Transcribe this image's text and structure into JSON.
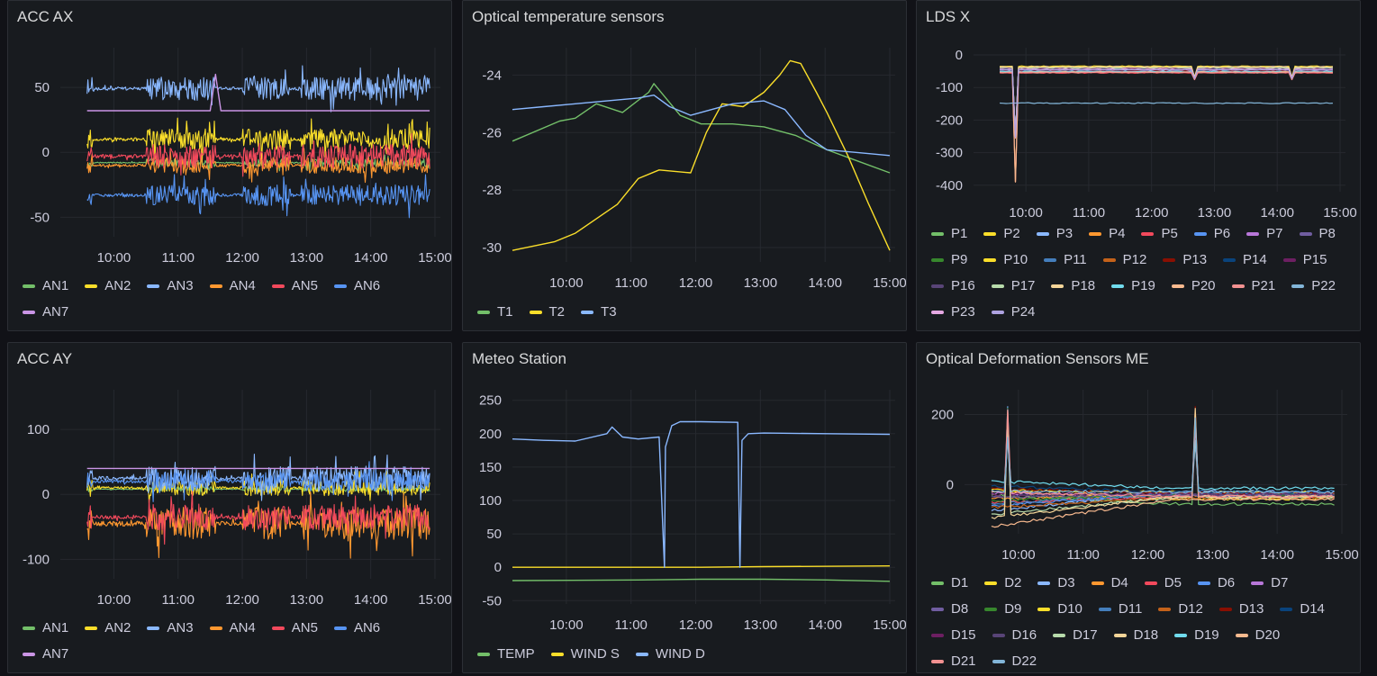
{
  "x_ticks": [
    "10:00",
    "11:00",
    "12:00",
    "13:00",
    "14:00",
    "15:00"
  ],
  "panels": [
    {
      "id": "acc-ax",
      "title": "ACC AX",
      "chart_data": {
        "type": "line",
        "title": "ACC AX",
        "x_range": [
          "09:10",
          "15:00"
        ],
        "ylim": [
          -65,
          75
        ],
        "y_ticks": [
          50,
          0,
          -50
        ],
        "grid": true,
        "legend_position": "bottom",
        "series": [
          {
            "name": "AN1",
            "color": "#73bf69",
            "baseline": -8,
            "amplitude": 3
          },
          {
            "name": "AN2",
            "color": "#fade2a",
            "baseline": 10,
            "amplitude": 8
          },
          {
            "name": "AN3",
            "color": "#8ab8ff",
            "baseline": 49,
            "amplitude": 9
          },
          {
            "name": "AN4",
            "color": "#ff9830",
            "baseline": -10,
            "amplitude": 6
          },
          {
            "name": "AN5",
            "color": "#f2495c",
            "baseline": -3,
            "amplitude": 9
          },
          {
            "name": "AN6",
            "color": "#5794f2",
            "baseline": -33,
            "amplitude": 8
          },
          {
            "name": "AN7",
            "color": "#ca95e5",
            "baseline": 32,
            "amplitude": 0
          }
        ]
      }
    },
    {
      "id": "optical-temp",
      "title": "Optical temperature sensors",
      "chart_data": {
        "type": "line",
        "title": "Optical temperature sensors",
        "x_range": [
          "09:00",
          "15:00"
        ],
        "ylim": [
          -30.5,
          -23.3
        ],
        "y_ticks": [
          -24,
          -26,
          -28,
          -30
        ],
        "grid": true,
        "legend_position": "bottom",
        "series": [
          {
            "name": "T1",
            "color": "#73bf69",
            "points": [
              [
                "09:00",
                -26.3
              ],
              [
                "09:45",
                -25.6
              ],
              [
                "10:00",
                -25.5
              ],
              [
                "10:20",
                -25.0
              ],
              [
                "10:45",
                -25.3
              ],
              [
                "11:10",
                -24.6
              ],
              [
                "11:15",
                -24.3
              ],
              [
                "11:40",
                -25.4
              ],
              [
                "12:00",
                -25.7
              ],
              [
                "12:30",
                -25.7
              ],
              [
                "13:00",
                -25.8
              ],
              [
                "13:30",
                -26.1
              ],
              [
                "14:00",
                -26.6
              ],
              [
                "14:30",
                -27.0
              ],
              [
                "15:00",
                -27.4
              ]
            ]
          },
          {
            "name": "T2",
            "color": "#fade2a",
            "points": [
              [
                "09:00",
                -30.1
              ],
              [
                "09:40",
                -29.8
              ],
              [
                "10:00",
                -29.5
              ],
              [
                "10:40",
                -28.5
              ],
              [
                "11:00",
                -27.6
              ],
              [
                "11:20",
                -27.3
              ],
              [
                "11:50",
                -27.4
              ],
              [
                "12:05",
                -26.0
              ],
              [
                "12:20",
                -25.0
              ],
              [
                "12:40",
                -25.1
              ],
              [
                "13:00",
                -24.6
              ],
              [
                "13:15",
                -24.0
              ],
              [
                "13:25",
                -23.5
              ],
              [
                "13:35",
                -23.6
              ],
              [
                "13:50",
                -24.6
              ],
              [
                "14:00",
                -25.3
              ],
              [
                "14:20",
                -26.8
              ],
              [
                "14:40",
                -28.5
              ],
              [
                "15:00",
                -30.1
              ]
            ]
          },
          {
            "name": "T3",
            "color": "#8ab8ff",
            "points": [
              [
                "09:00",
                -25.2
              ],
              [
                "09:30",
                -25.1
              ],
              [
                "10:00",
                -25.0
              ],
              [
                "10:30",
                -24.9
              ],
              [
                "11:00",
                -24.8
              ],
              [
                "11:15",
                -24.7
              ],
              [
                "11:30",
                -25.1
              ],
              [
                "11:50",
                -25.4
              ],
              [
                "12:10",
                -25.2
              ],
              [
                "12:30",
                -25.0
              ],
              [
                "13:00",
                -24.9
              ],
              [
                "13:20",
                -25.2
              ],
              [
                "13:40",
                -26.1
              ],
              [
                "14:00",
                -26.6
              ],
              [
                "14:30",
                -26.7
              ],
              [
                "15:00",
                -26.8
              ]
            ]
          }
        ]
      }
    },
    {
      "id": "lds-x",
      "title": "LDS X",
      "chart_data": {
        "type": "line",
        "title": "LDS X",
        "x_range": [
          "09:10",
          "15:00"
        ],
        "ylim": [
          -420,
          0
        ],
        "y_ticks": [
          0,
          -100,
          -200,
          -300,
          -400
        ],
        "grid": true,
        "legend_position": "bottom",
        "series_names": [
          "P1",
          "P2",
          "P3",
          "P4",
          "P5",
          "P6",
          "P7",
          "P8",
          "P9",
          "P10",
          "P11",
          "P12",
          "P13",
          "P14",
          "P15",
          "P16",
          "P17",
          "P18",
          "P19",
          "P20",
          "P21",
          "P22",
          "P23",
          "P24"
        ],
        "series_colors": [
          "#73bf69",
          "#fade2a",
          "#8ab8ff",
          "#ff9830",
          "#f2495c",
          "#5794f2",
          "#b877d9",
          "#705da0",
          "#37872d",
          "#fade2a",
          "#447ebc",
          "#c4621a",
          "#890f02",
          "#0a437c",
          "#6d1f62",
          "#584477",
          "#b7dbab",
          "#f4d598",
          "#70dbed",
          "#f9ba8f",
          "#f29191",
          "#82b5d8",
          "#e5a8e2",
          "#aea2e0"
        ],
        "baselines": [
          -40,
          -38,
          -45,
          -50,
          -55,
          -42,
          -48,
          -36,
          -44,
          -35,
          -46,
          -52,
          -49,
          -43,
          -41,
          -47,
          -39,
          -37,
          -51,
          -53,
          -54,
          -148,
          -44,
          -46
        ],
        "events": [
          {
            "time": "09:50",
            "min": -390
          },
          {
            "time": "12:40",
            "min": -90
          },
          {
            "time": "14:15",
            "min": -90
          }
        ]
      }
    },
    {
      "id": "acc-ay",
      "title": "ACC AY",
      "chart_data": {
        "type": "line",
        "title": "ACC AY",
        "x_range": [
          "09:10",
          "15:00"
        ],
        "ylim": [
          -130,
          150
        ],
        "y_ticks": [
          100,
          0,
          -100
        ],
        "grid": true,
        "legend_position": "bottom",
        "series": [
          {
            "name": "AN1",
            "color": "#73bf69",
            "baseline": 8,
            "amplitude": 4
          },
          {
            "name": "AN2",
            "color": "#fade2a",
            "baseline": 10,
            "amplitude": 12
          },
          {
            "name": "AN3",
            "color": "#8ab8ff",
            "baseline": 25,
            "amplitude": 18
          },
          {
            "name": "AN4",
            "color": "#ff9830",
            "baseline": -45,
            "amplitude": 25
          },
          {
            "name": "AN5",
            "color": "#f2495c",
            "baseline": -35,
            "amplitude": 20
          },
          {
            "name": "AN6",
            "color": "#5794f2",
            "baseline": 20,
            "amplitude": 15
          },
          {
            "name": "AN7",
            "color": "#ca95e5",
            "baseline": 40,
            "amplitude": 0
          }
        ]
      }
    },
    {
      "id": "meteo",
      "title": "Meteo Station",
      "chart_data": {
        "type": "line",
        "title": "Meteo Station",
        "x_range": [
          "09:00",
          "15:00"
        ],
        "ylim": [
          -55,
          255
        ],
        "y_ticks": [
          250,
          200,
          150,
          100,
          50,
          0,
          -50
        ],
        "grid": true,
        "legend_position": "bottom",
        "series": [
          {
            "name": "TEMP",
            "color": "#73bf69",
            "points": [
              [
                "09:00",
                -20
              ],
              [
                "11:00",
                -19
              ],
              [
                "12:00",
                -18
              ],
              [
                "13:00",
                -18
              ],
              [
                "14:00",
                -19
              ],
              [
                "15:00",
                -21
              ]
            ]
          },
          {
            "name": "WIND S",
            "color": "#fade2a",
            "points": [
              [
                "09:00",
                0
              ],
              [
                "12:00",
                0
              ],
              [
                "13:00",
                1
              ],
              [
                "15:00",
                2
              ]
            ]
          },
          {
            "name": "WIND D",
            "color": "#8ab8ff",
            "points": [
              [
                "09:00",
                192
              ],
              [
                "09:30",
                190
              ],
              [
                "10:00",
                189
              ],
              [
                "10:30",
                200
              ],
              [
                "10:35",
                210
              ],
              [
                "10:45",
                195
              ],
              [
                "11:00",
                192
              ],
              [
                "11:20",
                195
              ],
              [
                "11:25",
                0
              ],
              [
                "11:26",
                180
              ],
              [
                "11:32",
                212
              ],
              [
                "11:40",
                218
              ],
              [
                "12:00",
                218
              ],
              [
                "12:35",
                217
              ],
              [
                "12:37",
                0
              ],
              [
                "12:39",
                190
              ],
              [
                "12:45",
                200
              ],
              [
                "13:00",
                201
              ],
              [
                "14:00",
                200
              ],
              [
                "15:00",
                199
              ]
            ]
          }
        ]
      }
    },
    {
      "id": "optical-deformation",
      "title": "Optical Deformation Sensors ME",
      "chart_data": {
        "type": "line",
        "title": "Optical Deformation Sensors ME",
        "x_range": [
          "09:10",
          "15:00"
        ],
        "ylim": [
          -140,
          250
        ],
        "y_ticks": [
          200,
          0
        ],
        "grid": true,
        "legend_position": "bottom",
        "series_names": [
          "D1",
          "D2",
          "D3",
          "D4",
          "D5",
          "D6",
          "D7",
          "D8",
          "D9",
          "D10",
          "D11",
          "D12",
          "D13",
          "D14",
          "D15",
          "D16",
          "D17",
          "D18",
          "D19",
          "D20",
          "D21",
          "D22"
        ],
        "series_colors": [
          "#73bf69",
          "#fade2a",
          "#8ab8ff",
          "#ff9830",
          "#f2495c",
          "#5794f2",
          "#b877d9",
          "#705da0",
          "#37872d",
          "#fade2a",
          "#447ebc",
          "#c4621a",
          "#890f02",
          "#0a437c",
          "#6d1f62",
          "#584477",
          "#b7dbab",
          "#f4d598",
          "#70dbed",
          "#f9ba8f",
          "#f29191",
          "#82b5d8"
        ],
        "start_values": [
          -30,
          -20,
          -75,
          -40,
          -50,
          -60,
          -25,
          -35,
          -45,
          -15,
          -55,
          -65,
          -10,
          -5,
          -28,
          -33,
          -85,
          -95,
          10,
          -120,
          -22,
          -18
        ],
        "end_values": [
          -55,
          -40,
          -20,
          -30,
          -35,
          -25,
          -30,
          -32,
          -28,
          -22,
          -26,
          -38,
          -24,
          -20,
          -27,
          -29,
          -36,
          -34,
          -10,
          -42,
          -33,
          -21
        ],
        "spikes": [
          {
            "time": "09:50",
            "max": 230
          },
          {
            "time": "12:45",
            "max": 225
          }
        ]
      }
    }
  ]
}
